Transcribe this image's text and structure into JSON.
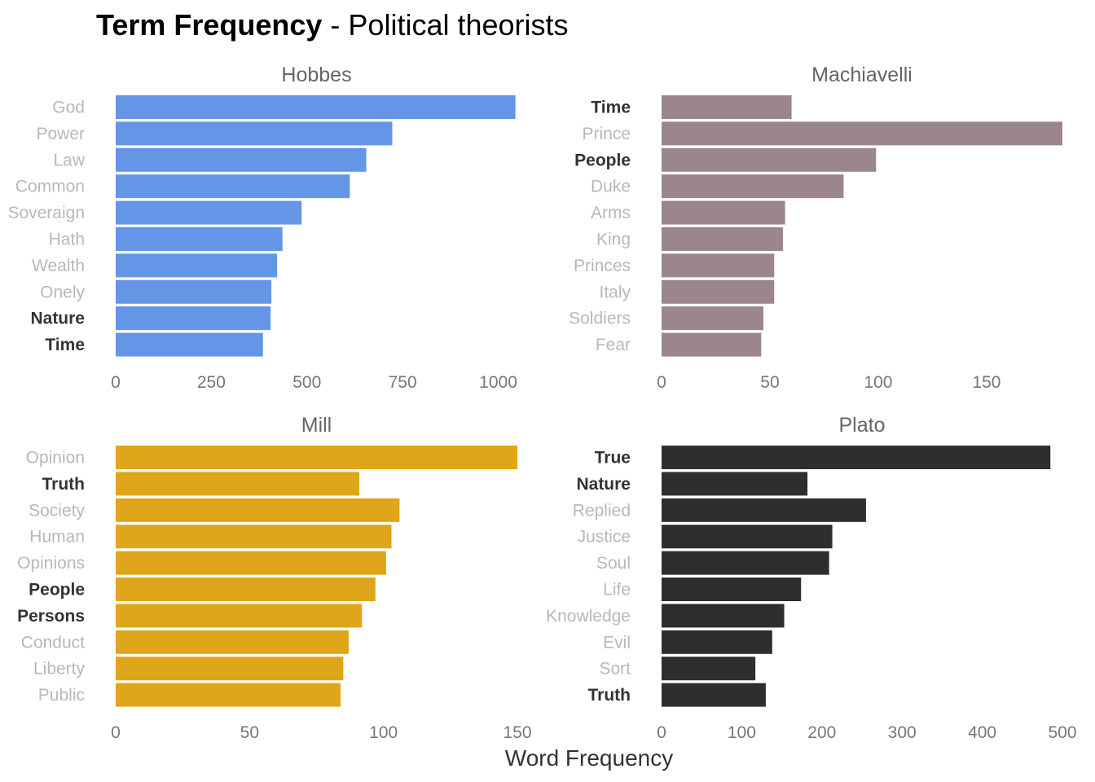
{
  "title_bold": "Term Frequency",
  "title_rest": " - Political theorists",
  "chart_data": {
    "type": "bar",
    "orientation": "horizontal",
    "xlabel": "Word Frequency",
    "panels": [
      {
        "name": "Hobbes",
        "color": "#6495e6",
        "xlim": [
          0,
          1050
        ],
        "ticks": [
          0,
          250,
          500,
          750,
          1000
        ],
        "categories": [
          "God",
          "Power",
          "Law",
          "Common",
          "Soveraign",
          "Hath",
          "Wealth",
          "Onely",
          "Nature",
          "Time"
        ],
        "highlighted": [
          "Nature",
          "Time"
        ],
        "values": [
          1045,
          723,
          655,
          612,
          486,
          436,
          422,
          407,
          405,
          385
        ]
      },
      {
        "name": "Machiavelli",
        "color": "#9b858f",
        "xlim": [
          0,
          185
        ],
        "ticks": [
          0,
          50,
          100,
          150
        ],
        "categories": [
          "Time",
          "Prince",
          "People",
          "Duke",
          "Arms",
          "King",
          "Princes",
          "Italy",
          "Soldiers",
          "Fear"
        ],
        "highlighted": [
          "Time",
          "People"
        ],
        "values": [
          60,
          185,
          99,
          84,
          57,
          56,
          52,
          52,
          47,
          46
        ]
      },
      {
        "name": "Mill",
        "color": "#e0a619",
        "xlim": [
          0,
          150
        ],
        "ticks": [
          0,
          50,
          100,
          150
        ],
        "categories": [
          "Opinion",
          "Truth",
          "Society",
          "Human",
          "Opinions",
          "People",
          "Persons",
          "Conduct",
          "Liberty",
          "Public"
        ],
        "highlighted": [
          "Truth",
          "People",
          "Persons"
        ],
        "values": [
          150,
          91,
          106,
          103,
          101,
          97,
          92,
          87,
          85,
          84
        ]
      },
      {
        "name": "Plato",
        "color": "#2e2e2e",
        "xlim": [
          0,
          500
        ],
        "ticks": [
          0,
          100,
          200,
          300,
          400,
          500
        ],
        "categories": [
          "True",
          "Nature",
          "Replied",
          "Justice",
          "Soul",
          "Life",
          "Knowledge",
          "Evil",
          "Sort",
          "Truth"
        ],
        "highlighted": [
          "True",
          "Nature",
          "Truth"
        ],
        "values": [
          485,
          182,
          255,
          213,
          209,
          174,
          153,
          138,
          117,
          130
        ]
      }
    ]
  }
}
